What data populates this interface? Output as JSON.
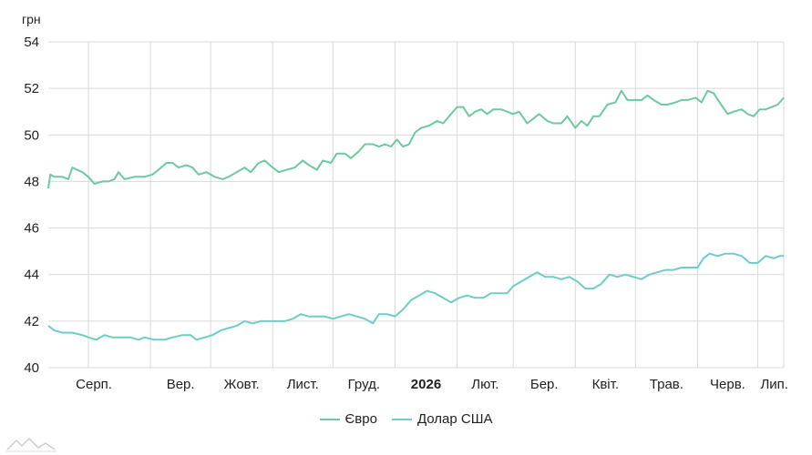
{
  "chart_data": {
    "type": "line",
    "unit_label": "грн",
    "ylim": [
      40,
      54
    ],
    "yticks": [
      40,
      42,
      44,
      46,
      48,
      50,
      52,
      54
    ],
    "grid": true,
    "legend_position": "bottom",
    "x_start": "2025-07-12",
    "x_end": "2026-07-14",
    "xticks": [
      {
        "label": "Серп.",
        "date": "2025-08-01"
      },
      {
        "label": "Вер.",
        "date": "2025-09-01"
      },
      {
        "label": "Жовт.",
        "date": "2025-10-01"
      },
      {
        "label": "Лист.",
        "date": "2025-11-01"
      },
      {
        "label": "Груд.",
        "date": "2025-12-01"
      },
      {
        "label": "2026",
        "date": "2026-01-01",
        "bold": true
      },
      {
        "label": "Лют.",
        "date": "2026-02-01"
      },
      {
        "label": "Бер.",
        "date": "2026-03-01"
      },
      {
        "label": "Квіт.",
        "date": "2026-04-01"
      },
      {
        "label": "Трав.",
        "date": "2026-05-01"
      },
      {
        "label": "Черв.",
        "date": "2026-06-01"
      },
      {
        "label": "Лип.",
        "date": "2026-07-01"
      }
    ],
    "series": [
      {
        "name": "Євро",
        "color": "#6cc9a0",
        "points": [
          [
            "2025-07-12",
            47.7
          ],
          [
            "2025-07-13",
            48.3
          ],
          [
            "2025-07-15",
            48.2
          ],
          [
            "2025-07-19",
            48.2
          ],
          [
            "2025-07-22",
            48.1
          ],
          [
            "2025-07-24",
            48.6
          ],
          [
            "2025-07-29",
            48.4
          ],
          [
            "2025-08-01",
            48.2
          ],
          [
            "2025-08-04",
            47.9
          ],
          [
            "2025-08-08",
            48.0
          ],
          [
            "2025-08-11",
            48.0
          ],
          [
            "2025-08-14",
            48.1
          ],
          [
            "2025-08-16",
            48.4
          ],
          [
            "2025-08-19",
            48.1
          ],
          [
            "2025-08-24",
            48.2
          ],
          [
            "2025-08-29",
            48.2
          ],
          [
            "2025-09-02",
            48.3
          ],
          [
            "2025-09-05",
            48.5
          ],
          [
            "2025-09-09",
            48.8
          ],
          [
            "2025-09-12",
            48.8
          ],
          [
            "2025-09-15",
            48.6
          ],
          [
            "2025-09-19",
            48.7
          ],
          [
            "2025-09-22",
            48.6
          ],
          [
            "2025-09-25",
            48.3
          ],
          [
            "2025-09-29",
            48.4
          ],
          [
            "2025-10-03",
            48.2
          ],
          [
            "2025-10-07",
            48.1
          ],
          [
            "2025-10-10",
            48.2
          ],
          [
            "2025-10-14",
            48.4
          ],
          [
            "2025-10-18",
            48.6
          ],
          [
            "2025-10-21",
            48.4
          ],
          [
            "2025-10-25",
            48.8
          ],
          [
            "2025-10-28",
            48.9
          ],
          [
            "2025-11-01",
            48.6
          ],
          [
            "2025-11-04",
            48.4
          ],
          [
            "2025-11-08",
            48.5
          ],
          [
            "2025-11-12",
            48.6
          ],
          [
            "2025-11-16",
            48.9
          ],
          [
            "2025-11-19",
            48.7
          ],
          [
            "2025-11-23",
            48.5
          ],
          [
            "2025-11-26",
            48.9
          ],
          [
            "2025-11-30",
            48.8
          ],
          [
            "2025-12-03",
            49.2
          ],
          [
            "2025-12-07",
            49.2
          ],
          [
            "2025-12-10",
            49.0
          ],
          [
            "2025-12-14",
            49.3
          ],
          [
            "2025-12-17",
            49.6
          ],
          [
            "2025-12-21",
            49.6
          ],
          [
            "2025-12-24",
            49.5
          ],
          [
            "2025-12-27",
            49.6
          ],
          [
            "2025-12-30",
            49.5
          ],
          [
            "2026-01-02",
            49.8
          ],
          [
            "2026-01-05",
            49.5
          ],
          [
            "2026-01-08",
            49.6
          ],
          [
            "2026-01-11",
            50.1
          ],
          [
            "2026-01-14",
            50.3
          ],
          [
            "2026-01-18",
            50.4
          ],
          [
            "2026-01-22",
            50.6
          ],
          [
            "2026-01-25",
            50.5
          ],
          [
            "2026-01-28",
            50.8
          ],
          [
            "2026-02-01",
            51.2
          ],
          [
            "2026-02-04",
            51.2
          ],
          [
            "2026-02-07",
            50.8
          ],
          [
            "2026-02-10",
            51.0
          ],
          [
            "2026-02-13",
            51.1
          ],
          [
            "2026-02-16",
            50.9
          ],
          [
            "2026-02-19",
            51.1
          ],
          [
            "2026-02-23",
            51.1
          ],
          [
            "2026-02-26",
            51.0
          ],
          [
            "2026-03-01",
            50.9
          ],
          [
            "2026-03-04",
            51.0
          ],
          [
            "2026-03-08",
            50.5
          ],
          [
            "2026-03-11",
            50.7
          ],
          [
            "2026-03-14",
            50.9
          ],
          [
            "2026-03-18",
            50.6
          ],
          [
            "2026-03-21",
            50.5
          ],
          [
            "2026-03-25",
            50.5
          ],
          [
            "2026-03-28",
            50.8
          ],
          [
            "2026-04-01",
            50.3
          ],
          [
            "2026-04-04",
            50.6
          ],
          [
            "2026-04-07",
            50.4
          ],
          [
            "2026-04-10",
            50.8
          ],
          [
            "2026-04-13",
            50.8
          ],
          [
            "2026-04-17",
            51.3
          ],
          [
            "2026-04-21",
            51.4
          ],
          [
            "2026-04-24",
            51.9
          ],
          [
            "2026-04-27",
            51.5
          ],
          [
            "2026-04-30",
            51.5
          ],
          [
            "2026-05-04",
            51.5
          ],
          [
            "2026-05-07",
            51.7
          ],
          [
            "2026-05-10",
            51.5
          ],
          [
            "2026-05-14",
            51.3
          ],
          [
            "2026-05-17",
            51.3
          ],
          [
            "2026-05-21",
            51.4
          ],
          [
            "2026-05-24",
            51.5
          ],
          [
            "2026-05-27",
            51.5
          ],
          [
            "2026-05-31",
            51.6
          ],
          [
            "2026-06-03",
            51.4
          ],
          [
            "2026-06-06",
            51.9
          ],
          [
            "2026-06-09",
            51.8
          ],
          [
            "2026-06-12",
            51.4
          ],
          [
            "2026-06-16",
            50.9
          ],
          [
            "2026-06-19",
            51.0
          ],
          [
            "2026-06-23",
            51.1
          ],
          [
            "2026-06-26",
            50.9
          ],
          [
            "2026-06-29",
            50.8
          ],
          [
            "2026-07-02",
            51.1
          ],
          [
            "2026-07-05",
            51.1
          ],
          [
            "2026-07-08",
            51.2
          ],
          [
            "2026-07-11",
            51.3
          ],
          [
            "2026-07-14",
            51.6
          ]
        ]
      },
      {
        "name": "Долар США",
        "color": "#6dcdc7",
        "points": [
          [
            "2025-07-12",
            41.8
          ],
          [
            "2025-07-15",
            41.6
          ],
          [
            "2025-07-19",
            41.5
          ],
          [
            "2025-07-24",
            41.5
          ],
          [
            "2025-07-29",
            41.4
          ],
          [
            "2025-08-01",
            41.3
          ],
          [
            "2025-08-05",
            41.2
          ],
          [
            "2025-08-09",
            41.4
          ],
          [
            "2025-08-13",
            41.3
          ],
          [
            "2025-08-18",
            41.3
          ],
          [
            "2025-08-22",
            41.3
          ],
          [
            "2025-08-26",
            41.2
          ],
          [
            "2025-08-29",
            41.3
          ],
          [
            "2025-09-03",
            41.2
          ],
          [
            "2025-09-08",
            41.2
          ],
          [
            "2025-09-12",
            41.3
          ],
          [
            "2025-09-17",
            41.4
          ],
          [
            "2025-09-21",
            41.4
          ],
          [
            "2025-09-24",
            41.2
          ],
          [
            "2025-09-28",
            41.3
          ],
          [
            "2025-10-02",
            41.4
          ],
          [
            "2025-10-06",
            41.6
          ],
          [
            "2025-10-10",
            41.7
          ],
          [
            "2025-10-14",
            41.8
          ],
          [
            "2025-10-18",
            42.0
          ],
          [
            "2025-10-22",
            41.9
          ],
          [
            "2025-10-26",
            42.0
          ],
          [
            "2025-10-30",
            42.0
          ],
          [
            "2025-11-03",
            42.0
          ],
          [
            "2025-11-07",
            42.0
          ],
          [
            "2025-11-11",
            42.1
          ],
          [
            "2025-11-15",
            42.3
          ],
          [
            "2025-11-19",
            42.2
          ],
          [
            "2025-11-23",
            42.2
          ],
          [
            "2025-11-27",
            42.2
          ],
          [
            "2025-12-01",
            42.1
          ],
          [
            "2025-12-05",
            42.2
          ],
          [
            "2025-12-09",
            42.3
          ],
          [
            "2025-12-13",
            42.2
          ],
          [
            "2025-12-17",
            42.1
          ],
          [
            "2025-12-21",
            41.9
          ],
          [
            "2025-12-24",
            42.3
          ],
          [
            "2025-12-28",
            42.3
          ],
          [
            "2026-01-01",
            42.2
          ],
          [
            "2026-01-05",
            42.5
          ],
          [
            "2026-01-09",
            42.9
          ],
          [
            "2026-01-13",
            43.1
          ],
          [
            "2026-01-17",
            43.3
          ],
          [
            "2026-01-21",
            43.2
          ],
          [
            "2026-01-25",
            43.0
          ],
          [
            "2026-01-29",
            42.8
          ],
          [
            "2026-02-02",
            43.0
          ],
          [
            "2026-02-06",
            43.1
          ],
          [
            "2026-02-10",
            43.0
          ],
          [
            "2026-02-14",
            43.0
          ],
          [
            "2026-02-18",
            43.2
          ],
          [
            "2026-02-22",
            43.2
          ],
          [
            "2026-02-26",
            43.2
          ],
          [
            "2026-03-01",
            43.5
          ],
          [
            "2026-03-05",
            43.7
          ],
          [
            "2026-03-09",
            43.9
          ],
          [
            "2026-03-13",
            44.1
          ],
          [
            "2026-03-17",
            43.9
          ],
          [
            "2026-03-21",
            43.9
          ],
          [
            "2026-03-25",
            43.8
          ],
          [
            "2026-03-29",
            43.9
          ],
          [
            "2026-04-02",
            43.7
          ],
          [
            "2026-04-06",
            43.4
          ],
          [
            "2026-04-10",
            43.4
          ],
          [
            "2026-04-14",
            43.6
          ],
          [
            "2026-04-18",
            44.0
          ],
          [
            "2026-04-22",
            43.9
          ],
          [
            "2026-04-26",
            44.0
          ],
          [
            "2026-04-30",
            43.9
          ],
          [
            "2026-05-04",
            43.8
          ],
          [
            "2026-05-08",
            44.0
          ],
          [
            "2026-05-12",
            44.1
          ],
          [
            "2026-05-16",
            44.2
          ],
          [
            "2026-05-20",
            44.2
          ],
          [
            "2026-05-24",
            44.3
          ],
          [
            "2026-05-28",
            44.3
          ],
          [
            "2026-06-01",
            44.3
          ],
          [
            "2026-06-04",
            44.7
          ],
          [
            "2026-06-07",
            44.9
          ],
          [
            "2026-06-11",
            44.8
          ],
          [
            "2026-06-15",
            44.9
          ],
          [
            "2026-06-19",
            44.9
          ],
          [
            "2026-06-23",
            44.8
          ],
          [
            "2026-06-27",
            44.5
          ],
          [
            "2026-07-01",
            44.5
          ],
          [
            "2026-07-05",
            44.8
          ],
          [
            "2026-07-09",
            44.7
          ],
          [
            "2026-07-12",
            44.8
          ],
          [
            "2026-07-14",
            44.8
          ]
        ]
      }
    ]
  },
  "colors": {
    "grid": "#d9d9d9",
    "axis_text": "#222222"
  },
  "legend": {
    "items": [
      {
        "label": "Євро",
        "color": "#6cc9a0"
      },
      {
        "label": "Долар США",
        "color": "#6dcdc7"
      }
    ]
  },
  "icons": {
    "logo": "mountain-logo-icon"
  }
}
